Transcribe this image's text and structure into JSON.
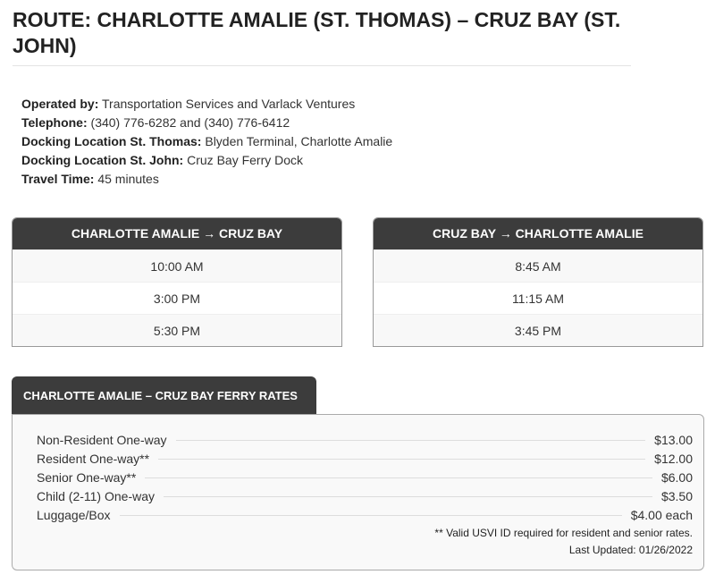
{
  "title": "ROUTE: CHARLOTTE AMALIE (ST. THOMAS) – CRUZ BAY (ST. JOHN)",
  "info": [
    {
      "label": "Operated by:",
      "value": "Transportation Services and Varlack Ventures"
    },
    {
      "label": "Telephone:",
      "value": "(340) 776-6282 and (340) 776-6412"
    },
    {
      "label": "Docking Location St. Thomas:",
      "value": "Blyden Terminal, Charlotte Amalie"
    },
    {
      "label": "Docking Location St. John:",
      "value": "Cruz Bay Ferry Dock"
    },
    {
      "label": "Travel Time:",
      "value": "45 minutes"
    }
  ],
  "schedules": [
    {
      "header": "CHARLOTTE AMALIE → CRUZ BAY",
      "times": [
        "10:00 AM",
        "3:00 PM",
        "5:30 PM"
      ]
    },
    {
      "header": "CRUZ BAY → CHARLOTTE AMALIE",
      "times": [
        "8:45 AM",
        "11:15 AM",
        "3:45 PM"
      ]
    }
  ],
  "rates": {
    "title": "CHARLOTTE AMALIE – CRUZ BAY FERRY RATES",
    "items": [
      {
        "label": "Non-Resident One-way",
        "price": "$13.00"
      },
      {
        "label": "Resident One-way**",
        "price": "$12.00"
      },
      {
        "label": "Senior One-way**",
        "price": "$6.00"
      },
      {
        "label": "Child (2-11) One-way",
        "price": "$3.50"
      },
      {
        "label": "Luggage/Box",
        "price": "$4.00 each"
      }
    ],
    "note": "** Valid USVI ID required for resident and senior rates.",
    "updated": "Last Updated: 01/26/2022"
  },
  "colors": {
    "header_bg": "#3c3c3c",
    "header_text": "#ffffff"
  }
}
